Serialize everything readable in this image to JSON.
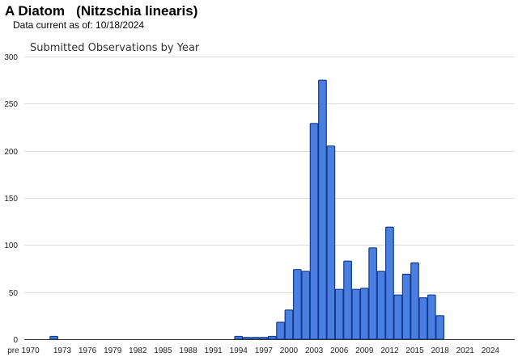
{
  "header": {
    "title": "A Diatom   (Nitzschia linearis)",
    "data_current_label": "Data current as of: 10/18/2024"
  },
  "chart_data": {
    "type": "bar",
    "title": "Submitted Observations by Year",
    "xlabel": "",
    "ylabel": "",
    "ylim": [
      0,
      300
    ],
    "yticks": [
      0,
      50,
      100,
      150,
      200,
      250,
      300
    ],
    "grid": true,
    "bar_color": "#4a7ee0",
    "bar_edge": "#123c8c",
    "x_tick_labels": [
      {
        "label": "pre 1970",
        "year": 1969
      },
      {
        "label": "1973",
        "year": 1973
      },
      {
        "label": "1976",
        "year": 1976
      },
      {
        "label": "1979",
        "year": 1979
      },
      {
        "label": "1982",
        "year": 1982
      },
      {
        "label": "1985",
        "year": 1985
      },
      {
        "label": "1988",
        "year": 1988
      },
      {
        "label": "1991",
        "year": 1991
      },
      {
        "label": "1994",
        "year": 1994
      },
      {
        "label": "1997",
        "year": 1997
      },
      {
        "label": "2000",
        "year": 2000
      },
      {
        "label": "2003",
        "year": 2003
      },
      {
        "label": "2006",
        "year": 2006
      },
      {
        "label": "2009",
        "year": 2009
      },
      {
        "label": "2012",
        "year": 2012
      },
      {
        "label": "2015",
        "year": 2015
      },
      {
        "label": "2018",
        "year": 2018
      },
      {
        "label": "2021",
        "year": 2021
      },
      {
        "label": "2024",
        "year": 2024
      }
    ],
    "bars": [
      {
        "year": 1972,
        "value": 3
      },
      {
        "year": 1994,
        "value": 3
      },
      {
        "year": 1995,
        "value": 2
      },
      {
        "year": 1996,
        "value": 2
      },
      {
        "year": 1997,
        "value": 2
      },
      {
        "year": 1998,
        "value": 3
      },
      {
        "year": 1999,
        "value": 18
      },
      {
        "year": 2000,
        "value": 31
      },
      {
        "year": 2001,
        "value": 74
      },
      {
        "year": 2002,
        "value": 72
      },
      {
        "year": 2003,
        "value": 229
      },
      {
        "year": 2004,
        "value": 275
      },
      {
        "year": 2005,
        "value": 205
      },
      {
        "year": 2006,
        "value": 53
      },
      {
        "year": 2007,
        "value": 83
      },
      {
        "year": 2008,
        "value": 53
      },
      {
        "year": 2009,
        "value": 54
      },
      {
        "year": 2010,
        "value": 97
      },
      {
        "year": 2011,
        "value": 72
      },
      {
        "year": 2012,
        "value": 119
      },
      {
        "year": 2013,
        "value": 47
      },
      {
        "year": 2014,
        "value": 69
      },
      {
        "year": 2015,
        "value": 81
      },
      {
        "year": 2016,
        "value": 44
      },
      {
        "year": 2017,
        "value": 47
      },
      {
        "year": 2018,
        "value": 25
      }
    ]
  }
}
